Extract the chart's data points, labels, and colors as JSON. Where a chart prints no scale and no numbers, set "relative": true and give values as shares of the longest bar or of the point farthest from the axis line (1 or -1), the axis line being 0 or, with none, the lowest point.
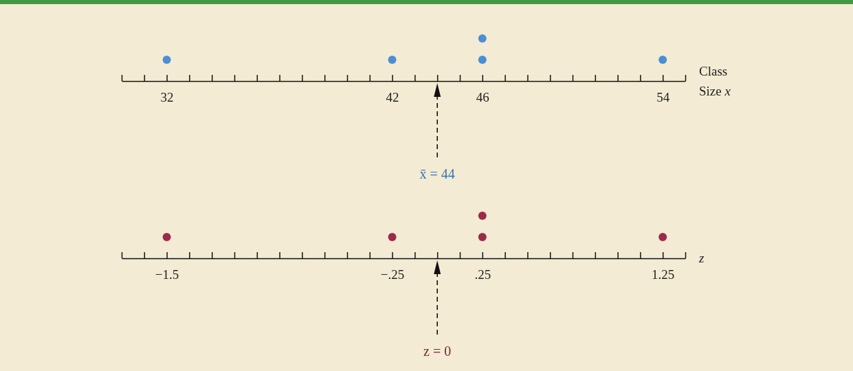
{
  "chart_data": [
    {
      "type": "scatter",
      "xlabel": "Class Size x",
      "x": [
        32,
        42,
        46,
        46,
        54
      ],
      "values": [
        0.5,
        0.5,
        0.5,
        1,
        0.5
      ],
      "relative": true,
      "color": "#4a8ed6",
      "marker": "circle",
      "xlim": [
        30,
        55
      ],
      "tick_labels": "x",
      "xticks": [
        {
          "value": 30,
          "label": null
        },
        {
          "value": 31,
          "label": null
        },
        32,
        {
          "value": 33,
          "label": null
        },
        {
          "value": 34,
          "label": null
        },
        {
          "value": 35,
          "label": null
        },
        {
          "value": 36,
          "label": null
        },
        {
          "value": 37,
          "label": null
        },
        {
          "value": 38,
          "label": null
        },
        {
          "value": 39,
          "label": null
        },
        {
          "value": 40,
          "label": null
        },
        {
          "value": 41,
          "label": null
        },
        42,
        {
          "value": 43,
          "label": null
        },
        {
          "value": 44,
          "label": null
        },
        {
          "value": 45,
          "label": null
        },
        46,
        {
          "value": 47,
          "label": null
        },
        {
          "value": 48,
          "label": null
        },
        {
          "value": 49,
          "label": null
        },
        {
          "value": 50,
          "label": null
        },
        {
          "value": 51,
          "label": null
        },
        {
          "value": 52,
          "label": null
        },
        {
          "value": 53,
          "label": null
        },
        54,
        {
          "value": 55,
          "label": null
        }
      ],
      "ref_lines": [
        {
          "axis": "x",
          "value": 44,
          "label": "x̄ = 44",
          "line_style": "dashed"
        }
      ]
    },
    {
      "type": "scatter",
      "xlabel": "z",
      "x": [
        -1.5,
        -0.25,
        0.25,
        0.25,
        1.25
      ],
      "values": [
        0.5,
        0.5,
        0.5,
        1,
        0.5
      ],
      "relative": true,
      "color": "#9c2a4a",
      "marker": "circle",
      "xlim": [
        -1.75,
        1.375
      ],
      "tick_labels": "x",
      "xticks": [
        {
          "value": -1.75,
          "label": null
        },
        {
          "value": -1.625,
          "label": null
        },
        {
          "value": -1.5,
          "label": "−1.5"
        },
        {
          "value": -1.375,
          "label": null
        },
        {
          "value": -1.25,
          "label": null
        },
        {
          "value": -1.125,
          "label": null
        },
        {
          "value": -1,
          "label": null
        },
        {
          "value": -0.875,
          "label": null
        },
        {
          "value": -0.75,
          "label": null
        },
        {
          "value": -0.625,
          "label": null
        },
        {
          "value": -0.5,
          "label": null
        },
        {
          "value": -0.375,
          "label": null
        },
        {
          "value": -0.25,
          "label": "−.25"
        },
        {
          "value": -0.125,
          "label": null
        },
        {
          "value": 0,
          "label": null
        },
        {
          "value": 0.125,
          "label": null
        },
        {
          "value": 0.25,
          "label": ".25"
        },
        {
          "value": 0.375,
          "label": null
        },
        {
          "value": 0.5,
          "label": null
        },
        {
          "value": 0.625,
          "label": null
        },
        {
          "value": 0.75,
          "label": null
        },
        {
          "value": 0.875,
          "label": null
        },
        {
          "value": 1,
          "label": null
        },
        {
          "value": 1.125,
          "label": null
        },
        {
          "value": 1.25,
          "label": "1.25"
        },
        {
          "value": 1.375,
          "label": null
        }
      ],
      "ref_lines": [
        {
          "axis": "x",
          "value": 0,
          "label": "z = 0",
          "line_style": "dashed"
        }
      ]
    }
  ]
}
